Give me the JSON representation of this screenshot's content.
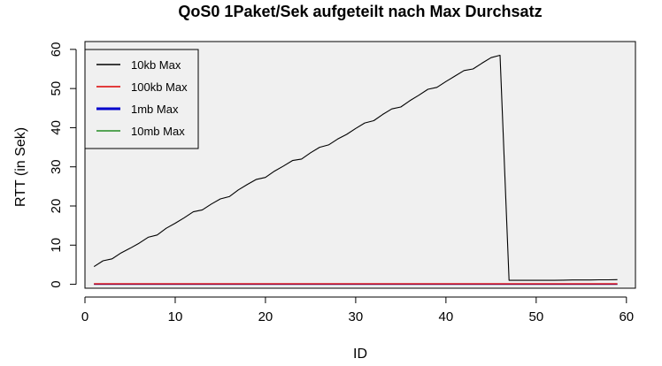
{
  "chart_data": {
    "type": "line",
    "title": "QoS0 1Paket/Sek aufgeteilt nach Max Durchsatz",
    "xlabel": "ID",
    "ylabel": "RTT (in Sek)",
    "xlim": [
      0,
      61
    ],
    "ylim": [
      -1,
      62
    ],
    "xticks": [
      0,
      10,
      20,
      30,
      40,
      50,
      60
    ],
    "yticks": [
      0,
      10,
      20,
      30,
      40,
      50,
      60
    ],
    "grid": false,
    "legend_position": "top-left",
    "x": [
      1,
      2,
      3,
      4,
      5,
      6,
      7,
      8,
      9,
      10,
      11,
      12,
      13,
      14,
      15,
      16,
      17,
      18,
      19,
      20,
      21,
      22,
      23,
      24,
      25,
      26,
      27,
      28,
      29,
      30,
      31,
      32,
      33,
      34,
      35,
      36,
      37,
      38,
      39,
      40,
      41,
      42,
      43,
      44,
      45,
      46,
      47,
      48,
      49,
      50,
      51,
      52,
      53,
      54,
      55,
      56,
      57,
      58,
      59
    ],
    "series": [
      {
        "name": "10kb Max",
        "color": "#000000",
        "values": [
          4.5,
          6.0,
          6.5,
          8.0,
          9.2,
          10.5,
          12.0,
          12.6,
          14.3,
          15.6,
          17.0,
          18.5,
          19.0,
          20.5,
          21.8,
          22.4,
          24.1,
          25.5,
          26.8,
          27.3,
          28.9,
          30.2,
          31.6,
          32.0,
          33.6,
          35.0,
          35.6,
          37.1,
          38.3,
          39.8,
          41.2,
          41.8,
          43.4,
          44.8,
          45.3,
          46.9,
          48.3,
          49.8,
          50.3,
          51.8,
          53.2,
          54.6,
          55.0,
          56.5,
          57.9,
          58.5,
          1.0,
          1.0,
          1.0,
          1.0,
          1.0,
          1.0,
          1.05,
          1.1,
          1.1,
          1.1,
          1.15,
          1.15,
          1.2
        ]
      },
      {
        "name": "100kb Max",
        "color": "#dd0000",
        "values": [
          0.1,
          0.1,
          0.1,
          0.1,
          0.1,
          0.1,
          0.1,
          0.1,
          0.1,
          0.1,
          0.1,
          0.1,
          0.1,
          0.1,
          0.1,
          0.1,
          0.1,
          0.1,
          0.1,
          0.1,
          0.1,
          0.1,
          0.1,
          0.1,
          0.1,
          0.1,
          0.1,
          0.1,
          0.1,
          0.1,
          0.1,
          0.1,
          0.1,
          0.1,
          0.1,
          0.1,
          0.1,
          0.1,
          0.1,
          0.1,
          0.1,
          0.1,
          0.1,
          0.1,
          0.1,
          0.1,
          0.1,
          0.1,
          0.1,
          0.1,
          0.1,
          0.1,
          0.1,
          0.1,
          0.1,
          0.1,
          0.1,
          0.1,
          0.1
        ]
      },
      {
        "name": "1mb Max",
        "color": "#0000cc",
        "values": [
          0.05,
          0.05,
          0.05,
          0.05,
          0.05,
          0.05,
          0.05,
          0.05,
          0.05,
          0.05,
          0.05,
          0.05,
          0.05,
          0.05,
          0.05,
          0.05,
          0.05,
          0.05,
          0.05,
          0.05,
          0.05,
          0.05,
          0.05,
          0.05,
          0.05,
          0.05,
          0.05,
          0.05,
          0.05,
          0.05,
          0.05,
          0.05,
          0.05,
          0.05,
          0.05,
          0.05,
          0.05,
          0.05,
          0.05,
          0.05,
          0.05,
          0.05,
          0.05,
          0.05,
          0.05,
          0.05,
          0.05,
          0.05,
          0.05,
          0.05,
          0.05,
          0.05,
          0.05,
          0.05,
          0.05,
          0.05,
          0.05,
          0.05,
          0.05
        ]
      },
      {
        "name": "10mb Max",
        "color": "#228B22",
        "values": [
          0.05,
          0.05,
          0.05,
          0.05,
          0.05,
          0.05,
          0.05,
          0.05,
          0.05,
          0.05,
          0.05,
          0.05,
          0.05,
          0.05,
          0.05,
          0.05,
          0.05,
          0.05,
          0.05,
          0.05,
          0.05,
          0.05,
          0.05,
          0.05,
          0.05,
          0.05,
          0.05,
          0.05,
          0.05,
          0.05,
          0.05,
          0.05,
          0.05,
          0.05,
          0.05,
          0.05,
          0.05,
          0.05,
          0.05,
          0.05,
          0.05,
          0.05,
          0.05,
          0.05,
          0.05,
          0.05,
          0.05,
          0.05,
          0.05,
          0.05,
          0.05,
          0.05,
          0.05,
          0.05,
          0.05,
          0.05,
          0.05,
          0.05,
          0.05
        ]
      }
    ],
    "colors": {
      "panel_background": "#f0f0f0",
      "legend_background": "#f0f0f0"
    }
  }
}
